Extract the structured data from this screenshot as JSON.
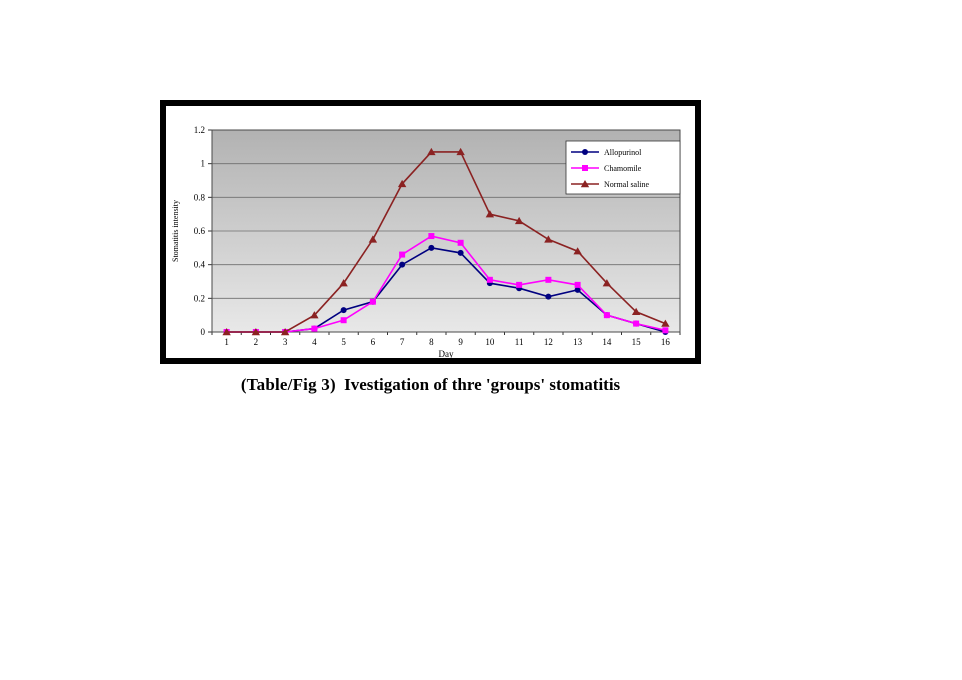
{
  "figure": {
    "caption_prefix": "(Table/Fig 3)",
    "caption_text": "Ivestigation of thre 'groups' stomatitis"
  },
  "chart_data": {
    "type": "line",
    "title": "",
    "xlabel": "Day",
    "ylabel": "Stomatitis intensity",
    "x": [
      1,
      2,
      3,
      4,
      5,
      6,
      7,
      8,
      9,
      10,
      11,
      12,
      13,
      14,
      15,
      16
    ],
    "ylim": [
      0,
      1.2
    ],
    "yticks": [
      0,
      0.2,
      0.4,
      0.6,
      0.8,
      1,
      1.2
    ],
    "grid": true,
    "legend_position": "top-right",
    "plot_bg_gradient_top": "#b2b2b2",
    "plot_bg_gradient_bottom": "#e8e8e8",
    "series": [
      {
        "name": "Allopurinol",
        "color": "#000080",
        "marker": "circle",
        "values": [
          0,
          0,
          0,
          0.02,
          0.13,
          0.18,
          0.4,
          0.5,
          0.47,
          0.29,
          0.26,
          0.21,
          0.25,
          0.1,
          0.05,
          0
        ]
      },
      {
        "name": "Chamomile",
        "color": "#FF00FF",
        "marker": "square",
        "values": [
          0,
          0,
          0,
          0.02,
          0.07,
          0.18,
          0.46,
          0.57,
          0.53,
          0.31,
          0.28,
          0.31,
          0.28,
          0.1,
          0.05,
          0.01
        ]
      },
      {
        "name": "Normal saline",
        "color": "#8B2222",
        "marker": "triangle",
        "values": [
          0,
          0,
          0,
          0.1,
          0.29,
          0.55,
          0.88,
          1.07,
          1.07,
          0.7,
          0.66,
          0.55,
          0.48,
          0.29,
          0.12,
          0.05
        ]
      }
    ]
  }
}
